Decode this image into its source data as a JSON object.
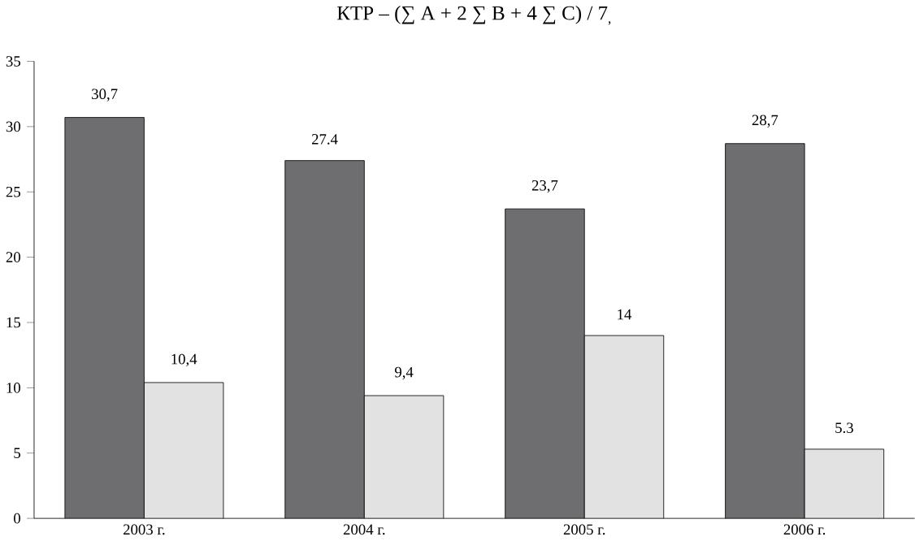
{
  "chart_data": {
    "type": "bar",
    "title": "КТР – (∑ А + 2 ∑ В + 4 ∑ С) / 7$_{,}$",
    "categories": [
      "2003 г.",
      "2004 г.",
      "2005 г.",
      "2006 г."
    ],
    "series": [
      {
        "color": "#6e6e70",
        "values": [
          30.7,
          27.4,
          23.7,
          28.7
        ],
        "value_labels": [
          "30,7",
          "27.4",
          "23,7",
          "28,7"
        ]
      },
      {
        "color": "#e2e2e2",
        "values": [
          10.4,
          9.4,
          14,
          5.3
        ],
        "value_labels": [
          "10,4",
          "9,4",
          "14",
          "5.3"
        ]
      }
    ],
    "ylim": [
      0,
      35
    ],
    "yticks": [
      0,
      5,
      10,
      15,
      20,
      25,
      30,
      35
    ],
    "grid": false
  }
}
